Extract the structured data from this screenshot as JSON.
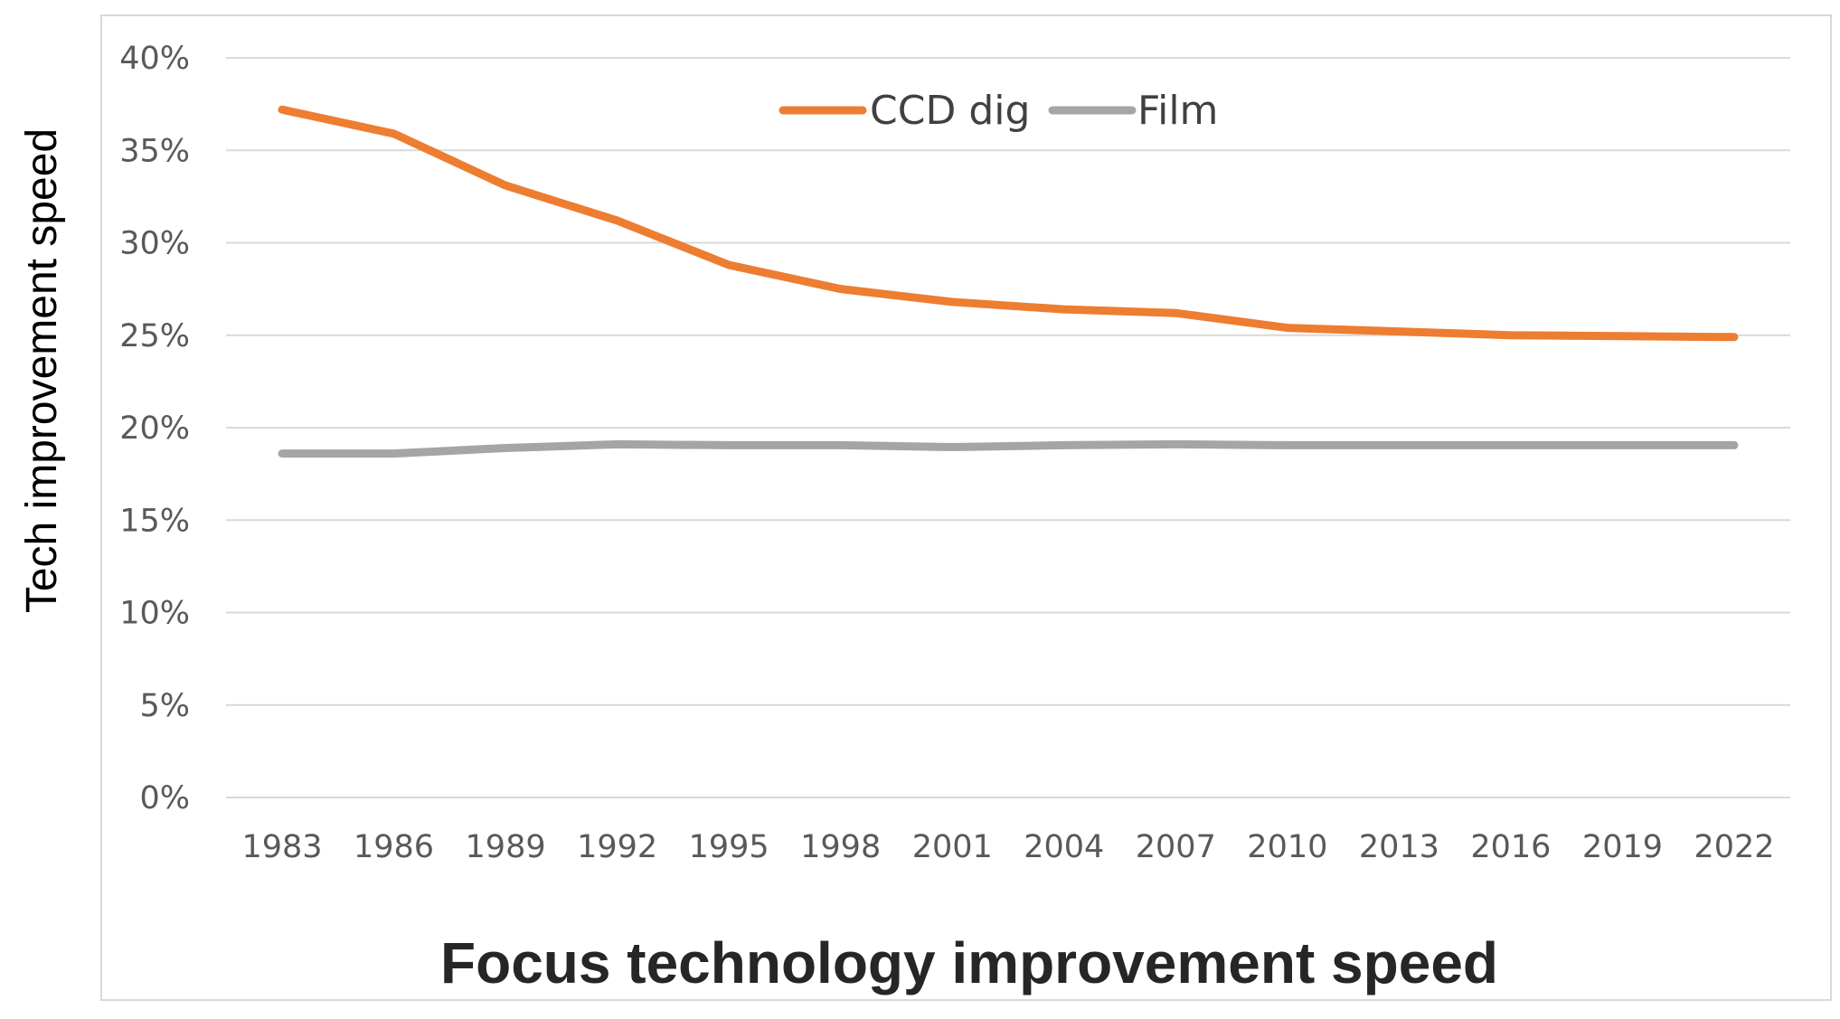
{
  "chart_data": {
    "type": "line",
    "title": "",
    "xlabel": "Focus technology improvement speed",
    "ylabel": "Tech improvement speed",
    "categories": [
      "1983",
      "1986",
      "1989",
      "1992",
      "1995",
      "1998",
      "2001",
      "2004",
      "2007",
      "2010",
      "2013",
      "2016",
      "2019",
      "2022"
    ],
    "ylim": [
      0,
      40
    ],
    "yticks": [
      0,
      5,
      10,
      15,
      20,
      25,
      30,
      35,
      40
    ],
    "ytick_labels": [
      "0%",
      "5%",
      "10%",
      "15%",
      "20%",
      "25%",
      "30%",
      "35%",
      "40%"
    ],
    "grid": true,
    "legend_position": "top-center",
    "series": [
      {
        "name": "CCD dig",
        "color": "#ED7D31",
        "values": [
          37.2,
          35.9,
          33.1,
          31.2,
          28.8,
          27.5,
          26.8,
          26.4,
          26.2,
          25.4,
          25.2,
          25.0,
          24.95,
          24.9
        ]
      },
      {
        "name": "Film",
        "color": "#A5A5A5",
        "values": [
          18.6,
          18.6,
          18.9,
          19.1,
          19.05,
          19.05,
          18.95,
          19.05,
          19.1,
          19.05,
          19.05,
          19.05,
          19.05,
          19.05
        ]
      }
    ]
  }
}
